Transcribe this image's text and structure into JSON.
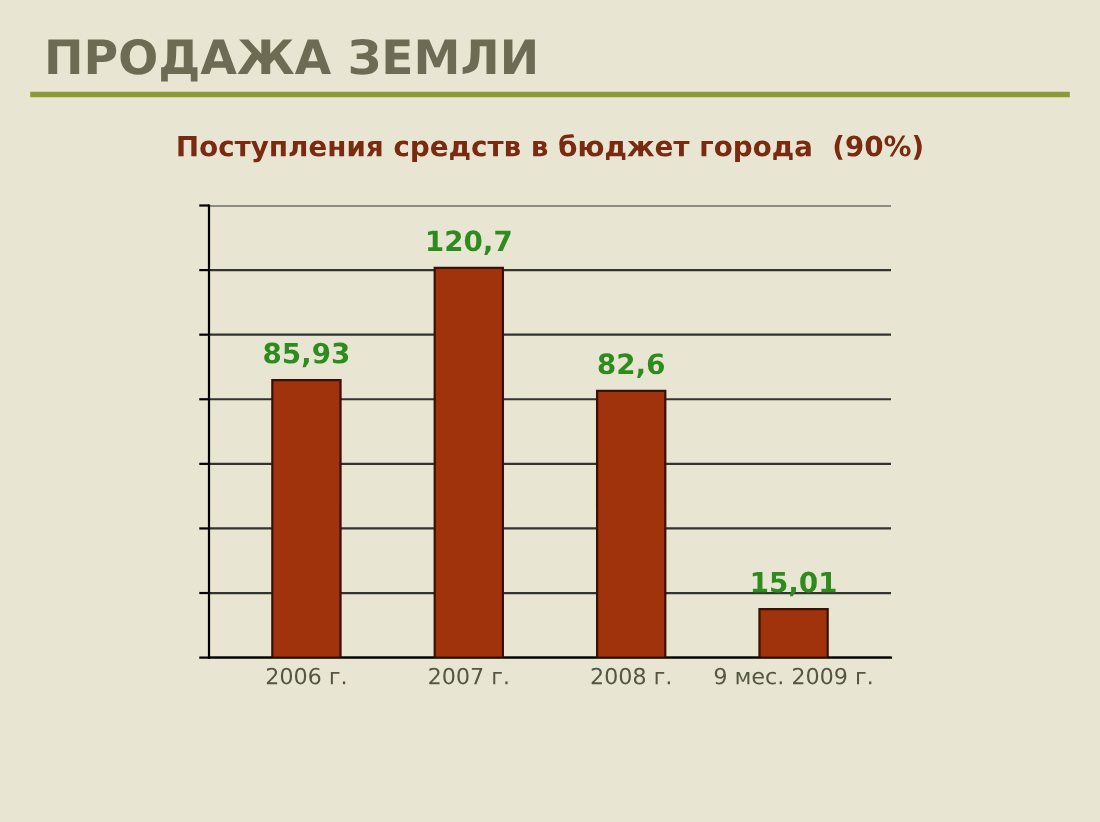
{
  "chart_data": {
    "type": "bar",
    "title": "ПРОДАЖА ЗЕМЛИ",
    "subtitle": "Поступления средств в бюджет города  (90%)",
    "categories": [
      "2006 г.",
      "2007 г.",
      "2008 г.",
      "9 мес. 2009 г."
    ],
    "values": [
      85.93,
      120.7,
      82.6,
      15.01
    ],
    "value_labels": [
      "85,93",
      "120,7",
      "82,6",
      "15,01"
    ],
    "color": "#a0330c",
    "ylim": [
      0,
      140
    ],
    "yticks": [
      {
        "value": 0,
        "label": null
      },
      {
        "value": 20,
        "label": null
      },
      {
        "value": 40,
        "label": null
      },
      {
        "value": 60,
        "label": null
      },
      {
        "value": 80,
        "label": null
      },
      {
        "value": 100,
        "label": null
      },
      {
        "value": 120,
        "label": null
      },
      {
        "value": 140,
        "label": null
      }
    ],
    "grid": "y",
    "tick_labels": "x",
    "legend": false
  }
}
